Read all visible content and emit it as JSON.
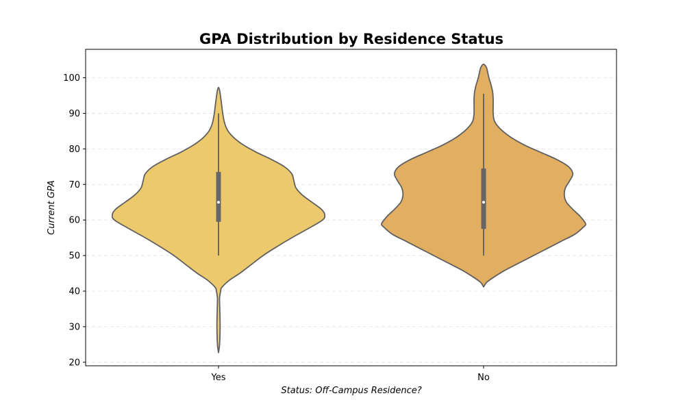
{
  "chart_data": {
    "type": "violin",
    "title": "GPA Distribution by Residence Status",
    "xlabel": "Status: Off-Campus Residence?",
    "ylabel": "Current GPA",
    "categories": [
      "Yes",
      "No"
    ],
    "ylim": [
      19,
      108
    ],
    "yticks": [
      20,
      30,
      40,
      50,
      60,
      70,
      80,
      90,
      100
    ],
    "grid": "y-dashed",
    "colors": {
      "Yes": "#ecc96c",
      "No": "#e1ae62",
      "outline": "#5f5f5f",
      "box": "#666666",
      "median": "#ffffff"
    },
    "violins": [
      {
        "category": "Yes",
        "profile": [
          [
            22.7,
            0.0
          ],
          [
            25,
            0.01
          ],
          [
            30,
            0.015
          ],
          [
            35,
            0.012
          ],
          [
            38,
            0.01
          ],
          [
            40,
            0.02
          ],
          [
            41,
            0.03
          ],
          [
            43,
            0.1
          ],
          [
            45,
            0.2
          ],
          [
            47.5,
            0.31
          ],
          [
            50,
            0.42
          ],
          [
            52.5,
            0.55
          ],
          [
            55,
            0.69
          ],
          [
            57.5,
            0.84
          ],
          [
            60,
            0.98
          ],
          [
            61.5,
            1.0
          ],
          [
            63,
            0.97
          ],
          [
            65,
            0.88
          ],
          [
            67,
            0.79
          ],
          [
            69,
            0.73
          ],
          [
            71,
            0.71
          ],
          [
            73,
            0.69
          ],
          [
            75,
            0.62
          ],
          [
            77,
            0.5
          ],
          [
            79,
            0.36
          ],
          [
            81,
            0.24
          ],
          [
            83,
            0.15
          ],
          [
            85,
            0.09
          ],
          [
            87,
            0.06
          ],
          [
            89,
            0.045
          ],
          [
            91,
            0.035
          ],
          [
            93,
            0.027
          ],
          [
            95,
            0.018
          ],
          [
            96.5,
            0.01
          ],
          [
            97.3,
            0.0
          ]
        ],
        "box": {
          "min": 50,
          "q1": 59.5,
          "median": 65,
          "q3": 73.5,
          "max": 90
        }
      },
      {
        "category": "No",
        "profile": [
          [
            41.2,
            0.0
          ],
          [
            42.5,
            0.03
          ],
          [
            44,
            0.1
          ],
          [
            46,
            0.21
          ],
          [
            48,
            0.34
          ],
          [
            50,
            0.47
          ],
          [
            52,
            0.6
          ],
          [
            54,
            0.73
          ],
          [
            56,
            0.86
          ],
          [
            58,
            0.94
          ],
          [
            59,
            0.96
          ],
          [
            61,
            0.91
          ],
          [
            63,
            0.84
          ],
          [
            65,
            0.78
          ],
          [
            67,
            0.76
          ],
          [
            69,
            0.77
          ],
          [
            71,
            0.81
          ],
          [
            73,
            0.84
          ],
          [
            75,
            0.8
          ],
          [
            77,
            0.69
          ],
          [
            79,
            0.54
          ],
          [
            81,
            0.39
          ],
          [
            83,
            0.27
          ],
          [
            85,
            0.18
          ],
          [
            86.5,
            0.13
          ],
          [
            88,
            0.1
          ],
          [
            90,
            0.09
          ],
          [
            92,
            0.09
          ],
          [
            94,
            0.09
          ],
          [
            96,
            0.085
          ],
          [
            98,
            0.07
          ],
          [
            100,
            0.05
          ],
          [
            102,
            0.035
          ],
          [
            103,
            0.025
          ],
          [
            103.8,
            0.0
          ]
        ],
        "box": {
          "min": 50,
          "q1": 57.5,
          "median": 65,
          "q3": 74.5,
          "max": 95.5
        }
      }
    ]
  }
}
